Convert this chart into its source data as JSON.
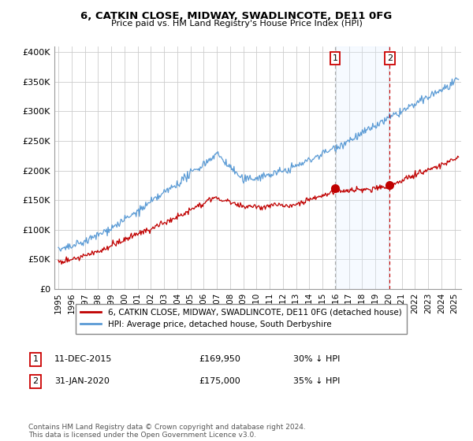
{
  "title": "6, CATKIN CLOSE, MIDWAY, SWADLINCOTE, DE11 0FG",
  "subtitle": "Price paid vs. HM Land Registry's House Price Index (HPI)",
  "ylabel_ticks": [
    "£0",
    "£50K",
    "£100K",
    "£150K",
    "£200K",
    "£250K",
    "£300K",
    "£350K",
    "£400K"
  ],
  "ytick_values": [
    0,
    50000,
    100000,
    150000,
    200000,
    250000,
    300000,
    350000,
    400000
  ],
  "ylim": [
    0,
    410000
  ],
  "xlim_start": 1994.7,
  "xlim_end": 2025.5,
  "marker1_x": 2015.95,
  "marker1_y": 169950,
  "marker1_label": "1",
  "marker1_date": "11-DEC-2015",
  "marker1_price": "£169,950",
  "marker1_hpi": "30% ↓ HPI",
  "marker2_x": 2020.08,
  "marker2_y": 175000,
  "marker2_label": "2",
  "marker2_date": "31-JAN-2020",
  "marker2_price": "£175,000",
  "marker2_hpi": "35% ↓ HPI",
  "hpi_color": "#5b9bd5",
  "price_color": "#c00000",
  "dashed_color": "#cc0000",
  "shade_color": "#ddeeff",
  "background_color": "#ffffff",
  "grid_color": "#cccccc",
  "legend_label_price": "6, CATKIN CLOSE, MIDWAY, SWADLINCOTE, DE11 0FG (detached house)",
  "legend_label_hpi": "HPI: Average price, detached house, South Derbyshire",
  "footnote": "Contains HM Land Registry data © Crown copyright and database right 2024.\nThis data is licensed under the Open Government Licence v3.0.",
  "xtick_years": [
    1995,
    1996,
    1997,
    1998,
    1999,
    2000,
    2001,
    2002,
    2003,
    2004,
    2005,
    2006,
    2007,
    2008,
    2009,
    2010,
    2011,
    2012,
    2013,
    2014,
    2015,
    2016,
    2017,
    2018,
    2019,
    2020,
    2021,
    2022,
    2023,
    2024,
    2025
  ]
}
